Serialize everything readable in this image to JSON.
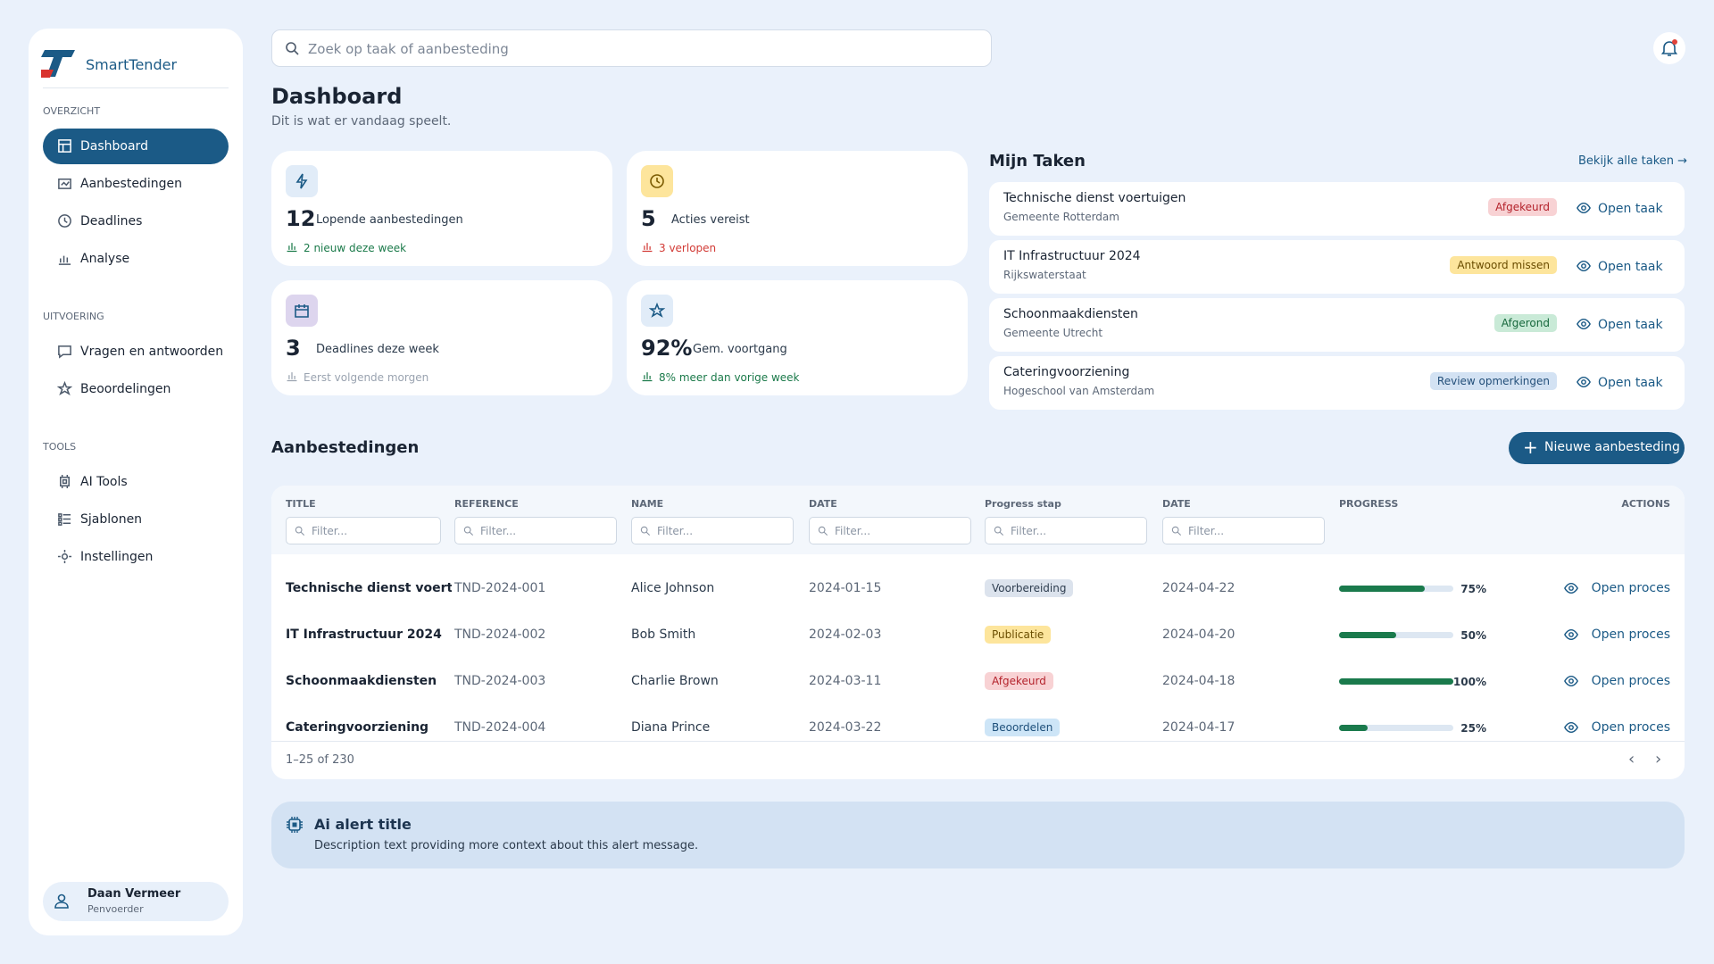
{
  "sidebar": {
    "brand": "SmartTender",
    "sections": [
      {
        "label": "OVERZICHT",
        "items": [
          "Dashboard",
          "Aanbestedingen",
          "Deadlines",
          "Analyse"
        ]
      },
      {
        "label": "UITVOERING",
        "items": [
          "Vragen en antwoorden",
          "Beoordelingen"
        ]
      },
      {
        "label": "TOOLS",
        "items": [
          "AI Tools",
          "Sjablonen",
          "Instellingen"
        ]
      }
    ],
    "user": {
      "name": "Daan Vermeer",
      "role": "Penvoerder"
    }
  },
  "search": {
    "placeholder": "Zoek op taak of aanbesteding"
  },
  "header": {
    "title": "Dashboard",
    "subtitle": "Dit is wat er vandaag speelt."
  },
  "stats": [
    {
      "value": "12",
      "label": "Lopende aanbestedingen",
      "note": "2 nieuw deze week"
    },
    {
      "value": "5",
      "label": "Acties vereist",
      "note": "3 verlopen"
    },
    {
      "value": "3",
      "label": "Deadlines deze week",
      "note": "Eerst volgende morgen"
    },
    {
      "value": "92%",
      "label": "Gem. voortgang",
      "note": "8% meer dan vorige week"
    }
  ],
  "tasks": {
    "title": "Mijn Taken",
    "link": "Bekijk alle taken",
    "items": [
      {
        "title": "Technische dienst voertuigen",
        "org": "Gemeente Rotterdam",
        "status": "Afgekeurd",
        "action": "Open taak"
      },
      {
        "title": "IT Infrastructuur 2024",
        "org": "Rijkswaterstaat",
        "status": "Antwoord missen",
        "action": "Open taak"
      },
      {
        "title": "Schoonmaakdiensten",
        "org": "Gemeente Utrecht",
        "status": "Afgerond",
        "action": "Open taak"
      },
      {
        "title": "Cateringvoorziening",
        "org": "Hogeschool van Amsterdam",
        "status": "Review opmerkingen",
        "action": "Open taak"
      }
    ]
  },
  "tenders": {
    "title": "Aanbestedingen",
    "button": "Nieuwe aanbesteding",
    "columns": [
      "TITLE",
      "REFERENCE",
      "NAME",
      "DATE",
      "Progress stap",
      "DATE",
      "PROGRESS",
      "ACTIONS"
    ],
    "filter_placeholder": "Filter...",
    "rows": [
      {
        "title": "Technische dienst voertuige",
        "reference": "TND-2024-001",
        "name": "Alice Johnson",
        "date": "2024-01-15",
        "stage": "Voorbereiding",
        "deadline": "2024-04-22",
        "progress": {
          "value": 75,
          "label": "75%"
        },
        "action": "Open proces"
      },
      {
        "title": "IT Infrastructuur 2024",
        "reference": "TND-2024-002",
        "name": "Bob Smith",
        "date": "2024-02-03",
        "stage": "Publicatie",
        "deadline": "2024-04-20",
        "progress": {
          "value": 50,
          "label": "50%"
        },
        "action": "Open proces"
      },
      {
        "title": "Schoonmaakdiensten",
        "reference": "TND-2024-003",
        "name": "Charlie Brown",
        "date": "2024-03-11",
        "stage": "Afgekeurd",
        "deadline": "2024-04-18",
        "progress": {
          "value": 100,
          "label": "100%"
        },
        "action": "Open proces"
      },
      {
        "title": "Cateringvoorziening",
        "reference": "TND-2024-004",
        "name": "Diana Prince",
        "date": "2024-03-22",
        "stage": "Beoordelen",
        "deadline": "2024-04-17",
        "progress": {
          "value": 25,
          "label": "25%"
        },
        "action": "Open proces"
      }
    ],
    "pagination": "1–25 of 230"
  },
  "alert": {
    "title": "Ai alert title",
    "description": "Description text providing more context about this alert message."
  }
}
